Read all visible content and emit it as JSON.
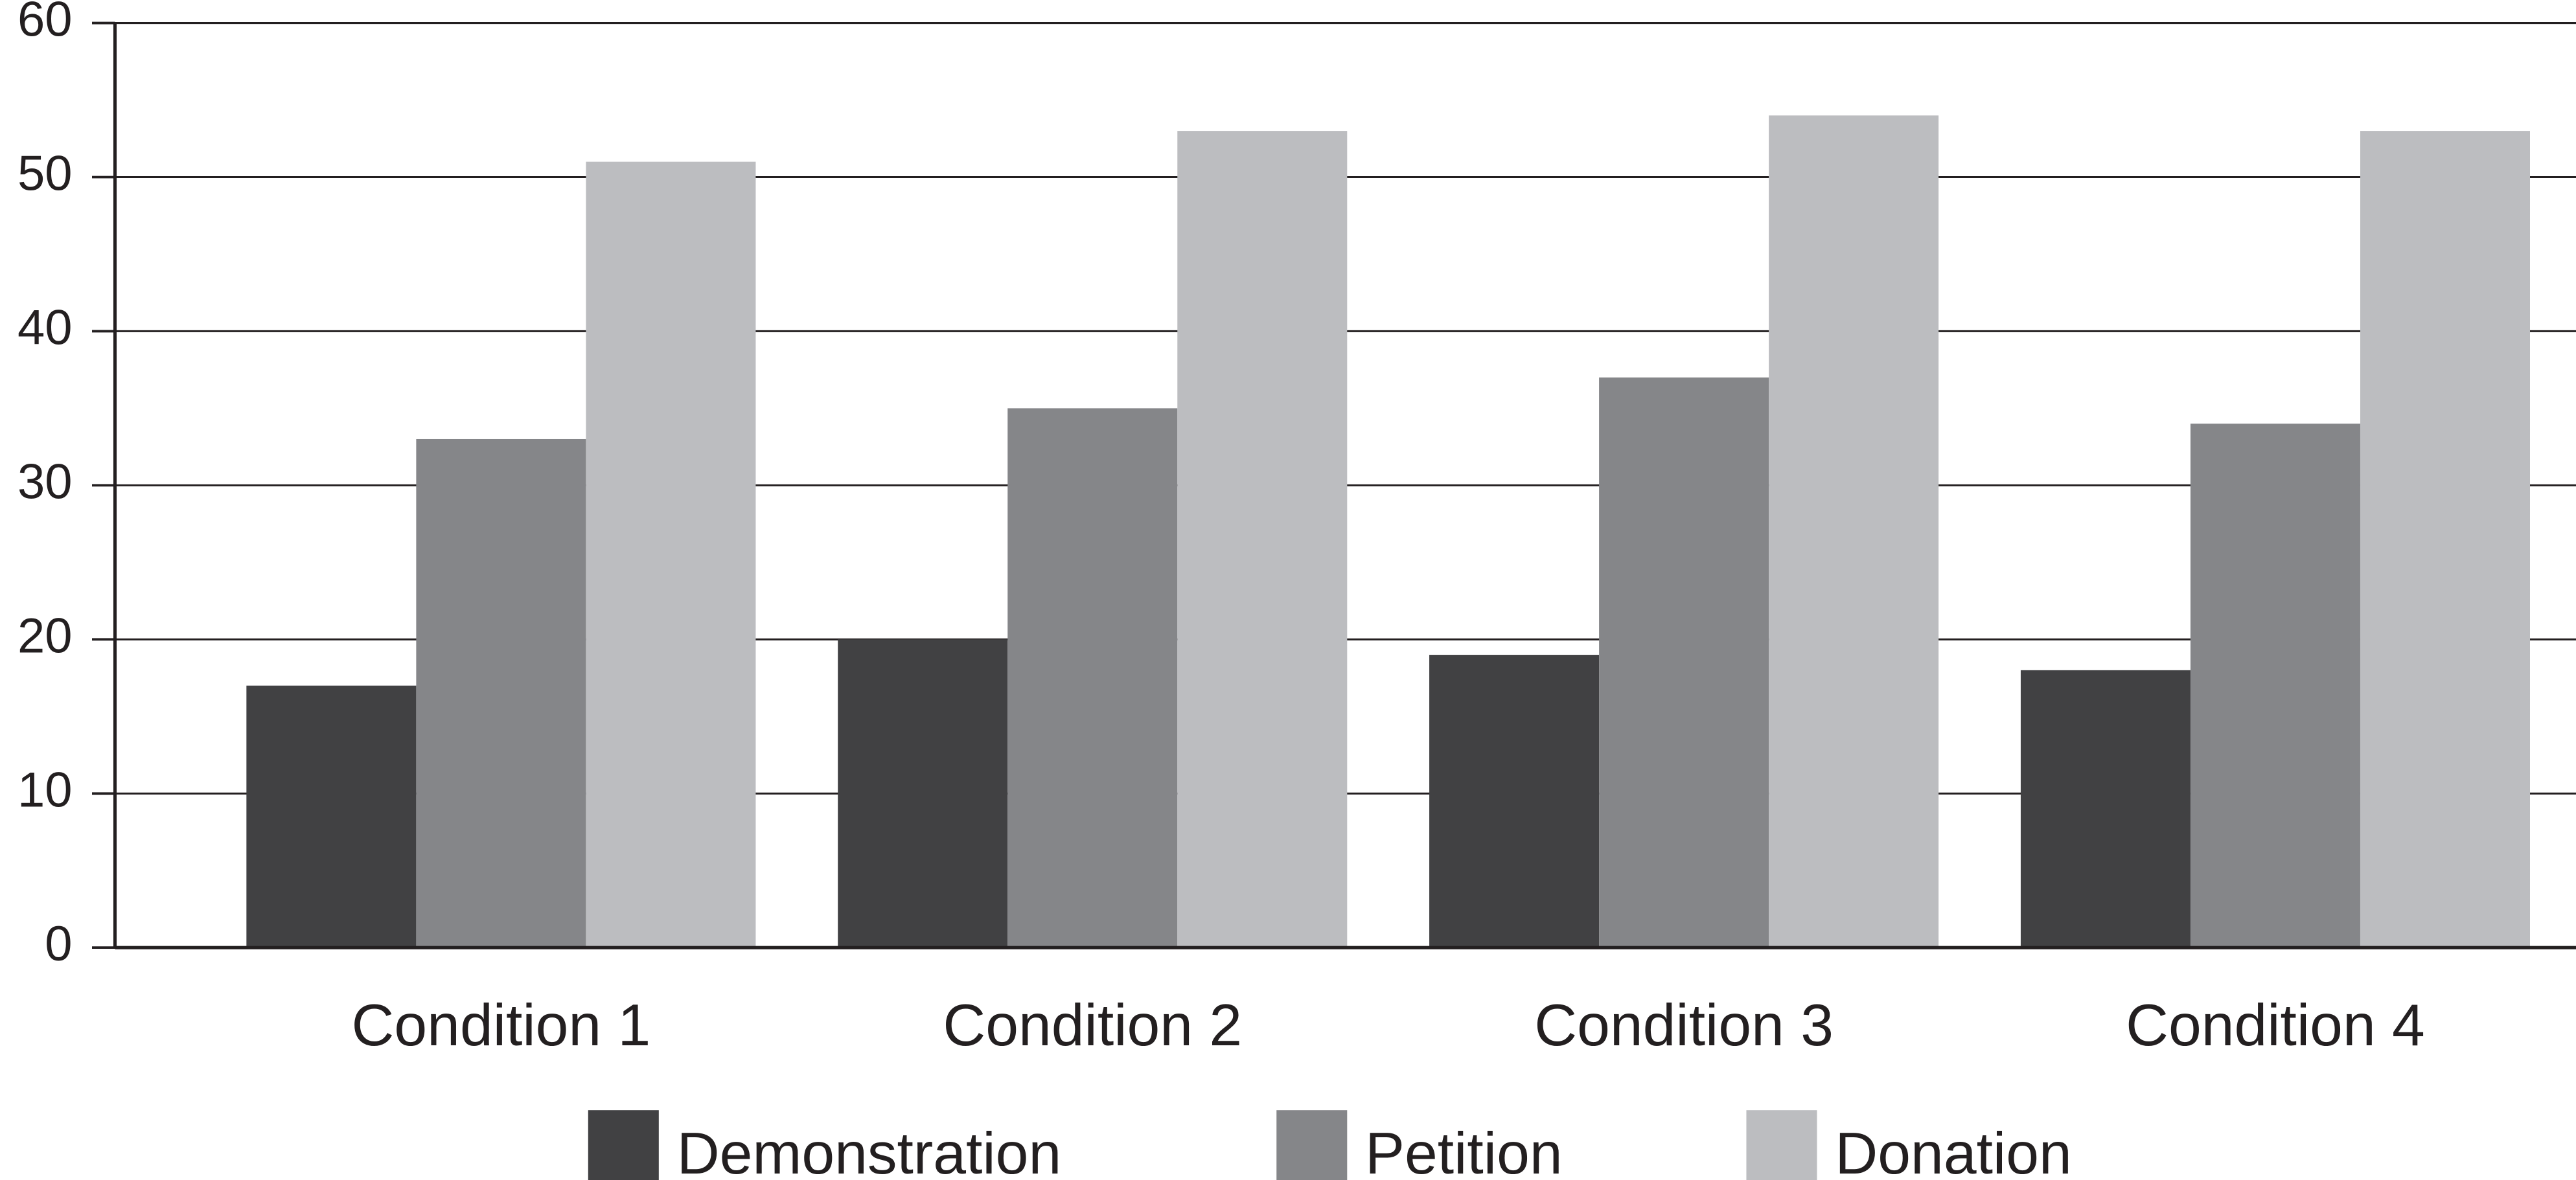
{
  "chart_data": {
    "type": "bar",
    "categories": [
      "Condition 1",
      "Condition 2",
      "Condition 3",
      "Condition 4"
    ],
    "series": [
      {
        "name": "Demonstration",
        "color": "#414143",
        "values": [
          17,
          20,
          19,
          18
        ]
      },
      {
        "name": "Petition",
        "color": "#858689",
        "values": [
          33,
          35,
          37,
          34
        ]
      },
      {
        "name": "Donation",
        "color": "#bcbdc0",
        "values": [
          51,
          53,
          54,
          53
        ]
      }
    ],
    "ylim": [
      0,
      60
    ],
    "yticks": [
      0,
      10,
      20,
      30,
      40,
      50,
      60
    ],
    "grid": true,
    "legend": "bottom"
  }
}
